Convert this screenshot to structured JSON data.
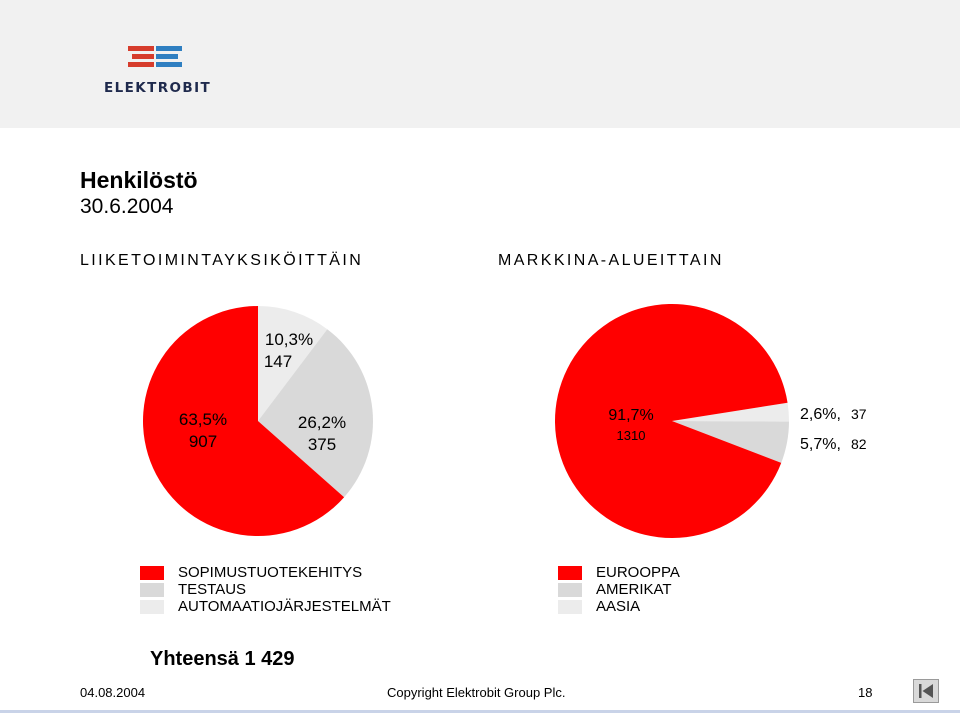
{
  "brand": {
    "name": "ELEKTROBIT"
  },
  "title": "Henkilöstö",
  "subtitle": "30.6.2004",
  "colors": {
    "red": "#ff0000",
    "grey": "#d9d9d9",
    "light_grey": "#ececec",
    "navy": "#1f2a4d",
    "logo_blue": "#2f7fc1"
  },
  "chart_data": [
    {
      "type": "pie",
      "title": "LIIKETOIMINTAYKSIKÖITTÄIN",
      "slices": [
        {
          "name": "AUTOMAATIOJÄRJESTELMÄT",
          "percent_label": "10,3%",
          "count_label": "147",
          "value": 147,
          "color": "#ececec"
        },
        {
          "name": "TESTAUS",
          "percent_label": "26,2%",
          "count_label": "375",
          "value": 375,
          "color": "#d9d9d9"
        },
        {
          "name": "SOPIMUSTUOTEKEHITYS",
          "percent_label": "63,5%",
          "count_label": "907",
          "value": 907,
          "color": "#ff0000"
        }
      ]
    },
    {
      "type": "pie",
      "title": "MARKKINA-ALUEITTAIN",
      "slices": [
        {
          "name": "AASIA",
          "percent_label": "2,6%,",
          "count_label": "37",
          "value": 37,
          "color": "#ececec"
        },
        {
          "name": "AMERIKAT",
          "percent_label": "5,7%,",
          "count_label": "82",
          "value": 82,
          "color": "#d9d9d9"
        },
        {
          "name": "EUROOPPA",
          "percent_label": "91,7%",
          "count_label": "1310",
          "value": 1310,
          "color": "#ff0000"
        }
      ]
    }
  ],
  "legend_left": [
    {
      "label": "SOPIMUSTUOTEKEHITYS",
      "color": "#ff0000"
    },
    {
      "label": "TESTAUS",
      "color": "#d9d9d9"
    },
    {
      "label": "AUTOMAATIOJÄRJESTELMÄT",
      "color": "#ececec"
    }
  ],
  "legend_right": [
    {
      "label": "EUROOPPA",
      "color": "#ff0000"
    },
    {
      "label": "AMERIKAT",
      "color": "#d9d9d9"
    },
    {
      "label": "AASIA",
      "color": "#ececec"
    }
  ],
  "total": "Yhteensä 1 429",
  "footer": {
    "date": "04.08.2004",
    "copyright": "Copyright Elektrobit Group Plc.",
    "page": "18"
  },
  "nav": {
    "icon": "first-slide-icon"
  }
}
